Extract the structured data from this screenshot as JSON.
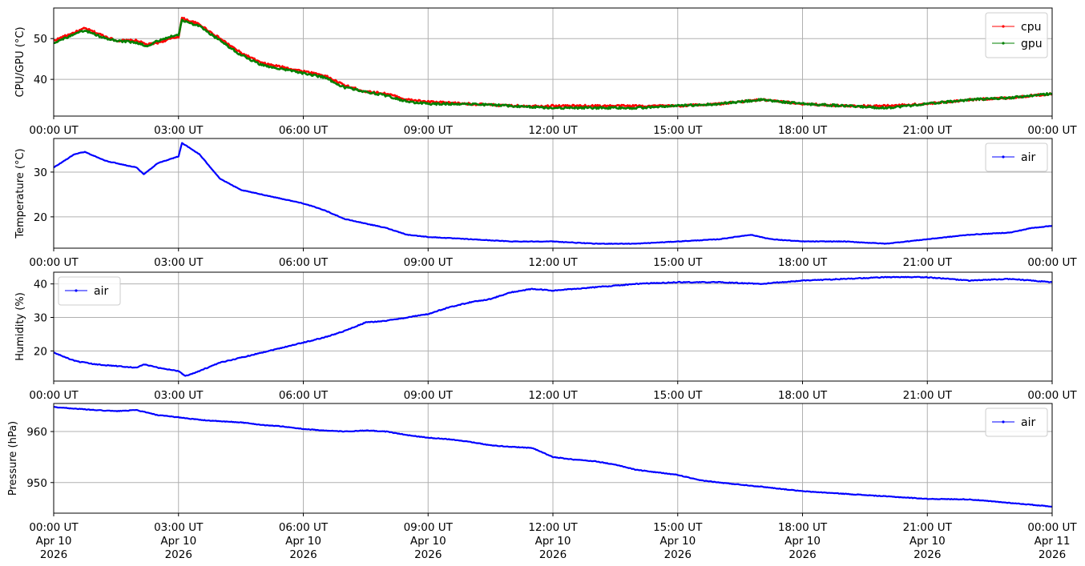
{
  "figure": {
    "x_tick_labels": [
      "00:00 UT",
      "03:00 UT",
      "06:00 UT",
      "09:00 UT",
      "12:00 UT",
      "15:00 UT",
      "18:00 UT",
      "21:00 UT",
      "00:00 UT"
    ],
    "x_tick_dates": [
      "Apr 10",
      "Apr 10",
      "Apr 10",
      "Apr 10",
      "Apr 10",
      "Apr 10",
      "Apr 10",
      "Apr 10",
      "Apr 11"
    ],
    "x_tick_years": [
      "2026",
      "2026",
      "2026",
      "2026",
      "2026",
      "2026",
      "2026",
      "2026",
      "2026"
    ]
  },
  "chart_data": [
    {
      "type": "line",
      "ylabel": "CPU/GPU (°C)",
      "xlim": [
        "2026-04-10 00:00 UT",
        "2026-04-11 00:00 UT"
      ],
      "ylim": [
        31,
        57.5
      ],
      "yticks": [
        40,
        50
      ],
      "grid": true,
      "legend": "top-right",
      "x": [
        "00:00",
        "00:30",
        "00:45",
        "01:15",
        "01:30",
        "02:00",
        "02:15",
        "02:30",
        "03:00",
        "03:05",
        "03:30",
        "04:00",
        "04:30",
        "05:00",
        "05:30",
        "06:00",
        "06:30",
        "07:00",
        "07:30",
        "08:00",
        "08:30",
        "09:00",
        "10:00",
        "11:00",
        "12:00",
        "13:00",
        "14:00",
        "15:00",
        "16:00",
        "16:30",
        "17:00",
        "17:30",
        "18:00",
        "19:00",
        "20:00",
        "21:00",
        "22:00",
        "23:00",
        "24:00"
      ],
      "series": [
        {
          "name": "cpu",
          "color": "#ff0000",
          "values": [
            49.5,
            51.5,
            52.5,
            50.5,
            49.5,
            49.5,
            48.5,
            49.0,
            50.5,
            55.0,
            53.5,
            50.0,
            46.5,
            44.0,
            43.0,
            42.0,
            41.0,
            38.5,
            37.0,
            36.5,
            35.0,
            34.5,
            34.0,
            33.5,
            33.5,
            33.5,
            33.5,
            33.5,
            34.0,
            34.5,
            35.0,
            34.5,
            34.0,
            33.5,
            33.5,
            34.0,
            35.0,
            35.5,
            36.5
          ]
        },
        {
          "name": "gpu",
          "color": "#008000",
          "values": [
            49.0,
            51.0,
            52.0,
            50.0,
            49.5,
            49.0,
            48.0,
            49.5,
            51.0,
            54.5,
            53.0,
            49.5,
            46.0,
            43.5,
            42.5,
            41.5,
            40.5,
            38.0,
            37.0,
            36.0,
            34.5,
            34.0,
            34.0,
            33.5,
            33.0,
            33.0,
            33.0,
            33.5,
            34.0,
            34.5,
            35.0,
            34.5,
            34.0,
            33.5,
            33.0,
            34.0,
            35.0,
            35.5,
            36.5
          ]
        }
      ]
    },
    {
      "type": "line",
      "ylabel": "Temperature (°C)",
      "xlim": [
        "2026-04-10 00:00 UT",
        "2026-04-11 00:00 UT"
      ],
      "ylim": [
        13,
        37.5
      ],
      "yticks": [
        20,
        30
      ],
      "grid": true,
      "legend": "top-right",
      "x": [
        "00:00",
        "00:30",
        "00:45",
        "01:15",
        "01:30",
        "02:00",
        "02:10",
        "02:30",
        "03:00",
        "03:05",
        "03:30",
        "04:00",
        "04:30",
        "05:00",
        "05:30",
        "06:00",
        "06:30",
        "07:00",
        "07:30",
        "08:00",
        "08:30",
        "09:00",
        "10:00",
        "11:00",
        "12:00",
        "13:00",
        "14:00",
        "15:00",
        "16:00",
        "16:45",
        "17:15",
        "18:00",
        "19:00",
        "20:00",
        "21:00",
        "22:00",
        "23:00",
        "23:30",
        "24:00"
      ],
      "series": [
        {
          "name": "air",
          "color": "#0000ff",
          "values": [
            31.0,
            34.0,
            34.5,
            32.5,
            32.0,
            31.0,
            29.5,
            32.0,
            33.5,
            36.5,
            34.0,
            28.5,
            26.0,
            25.0,
            24.0,
            23.0,
            21.5,
            19.5,
            18.5,
            17.5,
            16.0,
            15.5,
            15.0,
            14.5,
            14.5,
            14.0,
            14.0,
            14.5,
            15.0,
            16.0,
            15.0,
            14.5,
            14.5,
            14.0,
            15.0,
            16.0,
            16.5,
            17.5,
            18.0
          ]
        }
      ]
    },
    {
      "type": "line",
      "ylabel": "Humidity (%)",
      "xlim": [
        "2026-04-10 00:00 UT",
        "2026-04-11 00:00 UT"
      ],
      "ylim": [
        11,
        43.5
      ],
      "yticks": [
        20,
        30,
        40
      ],
      "grid": true,
      "legend": "top-left",
      "x": [
        "00:00",
        "00:30",
        "01:00",
        "01:30",
        "02:00",
        "02:10",
        "02:30",
        "03:00",
        "03:10",
        "03:30",
        "04:00",
        "04:30",
        "05:00",
        "05:30",
        "06:00",
        "06:30",
        "07:00",
        "07:30",
        "08:00",
        "08:30",
        "09:00",
        "09:30",
        "10:00",
        "10:30",
        "11:00",
        "11:30",
        "12:00",
        "13:00",
        "14:00",
        "15:00",
        "16:00",
        "17:00",
        "18:00",
        "19:00",
        "20:00",
        "21:00",
        "22:00",
        "23:00",
        "24:00"
      ],
      "series": [
        {
          "name": "air",
          "color": "#0000ff",
          "values": [
            19.5,
            17.0,
            16.0,
            15.5,
            15.0,
            16.0,
            15.0,
            14.0,
            12.5,
            14.0,
            16.5,
            18.0,
            19.5,
            21.0,
            22.5,
            24.0,
            26.0,
            28.5,
            29.0,
            30.0,
            31.0,
            33.0,
            34.5,
            35.5,
            37.5,
            38.5,
            38.0,
            39.0,
            40.0,
            40.5,
            40.5,
            40.0,
            41.0,
            41.5,
            42.0,
            42.0,
            41.0,
            41.5,
            40.5
          ]
        }
      ]
    },
    {
      "type": "line",
      "ylabel": "Pressure (hPa)",
      "xlim": [
        "2026-04-10 00:00 UT",
        "2026-04-11 00:00 UT"
      ],
      "ylim": [
        944,
        965.5
      ],
      "yticks": [
        950,
        960
      ],
      "grid": true,
      "legend": "top-right",
      "x": [
        "00:00",
        "00:30",
        "01:00",
        "01:30",
        "02:00",
        "02:30",
        "03:00",
        "03:30",
        "04:00",
        "04:30",
        "05:00",
        "05:30",
        "06:00",
        "06:30",
        "07:00",
        "07:30",
        "08:00",
        "08:30",
        "09:00",
        "09:30",
        "10:00",
        "10:30",
        "11:00",
        "11:30",
        "12:00",
        "12:30",
        "13:00",
        "13:30",
        "14:00",
        "14:30",
        "15:00",
        "15:30",
        "16:00",
        "17:00",
        "18:00",
        "19:00",
        "20:00",
        "21:00",
        "22:00",
        "23:00",
        "24:00"
      ],
      "series": [
        {
          "name": "air",
          "color": "#0000ff",
          "values": [
            964.8,
            964.5,
            964.2,
            964.0,
            964.2,
            963.2,
            962.8,
            962.3,
            962.0,
            961.8,
            961.3,
            961.0,
            960.5,
            960.2,
            960.0,
            960.2,
            960.0,
            959.3,
            958.8,
            958.5,
            958.0,
            957.3,
            957.0,
            956.8,
            955.0,
            954.5,
            954.2,
            953.5,
            952.5,
            952.0,
            951.5,
            950.5,
            950.0,
            949.2,
            948.3,
            947.8,
            947.3,
            946.8,
            946.7,
            946.0,
            945.3
          ]
        }
      ]
    }
  ]
}
